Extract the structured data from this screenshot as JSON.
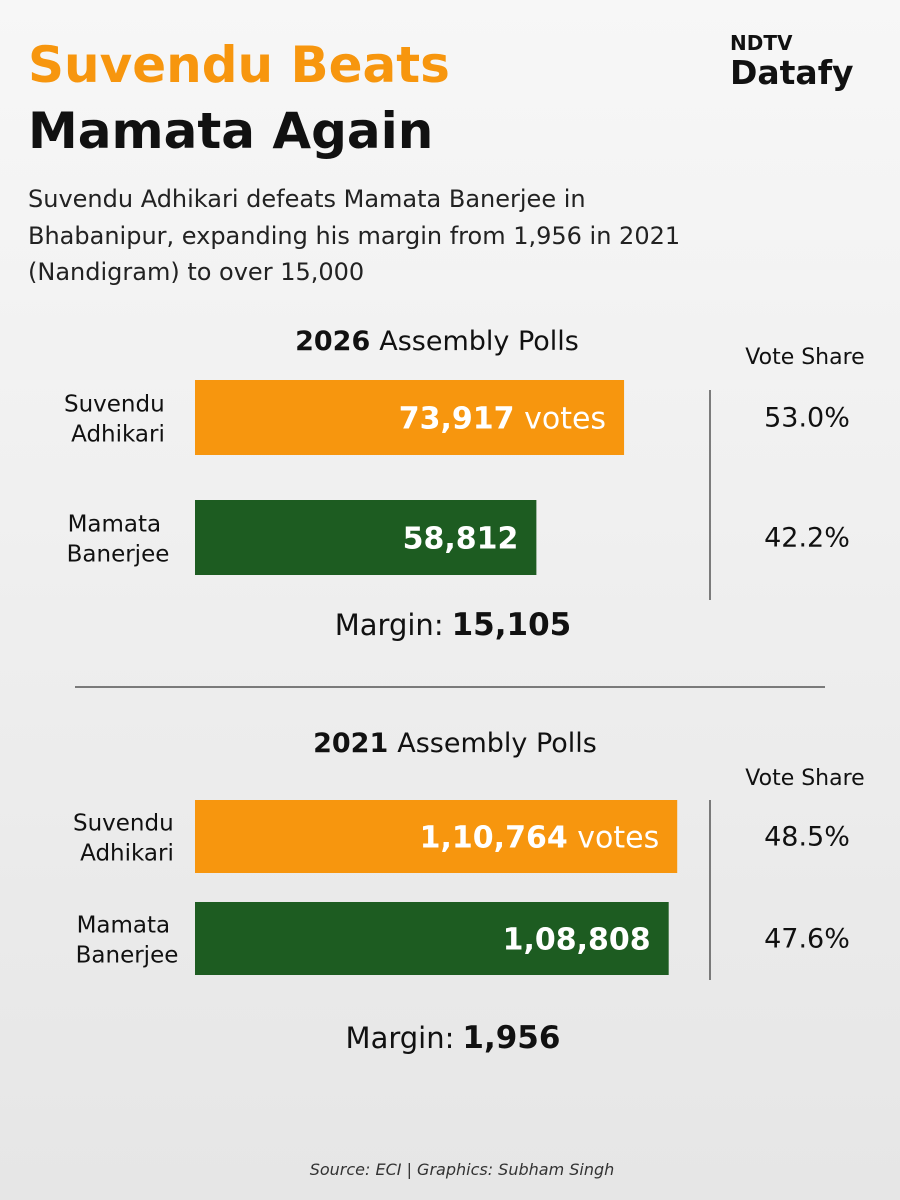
{
  "header": {
    "title_line1": "Suvendu Beats",
    "title_line2": "Mamata Again",
    "subtitle": [
      "Suvendu Adhikari defeats Mamata Banerjee in",
      "Bhabanipur, expanding his margin from 1,956 in 2021",
      "(Nandigram) to over 15,000"
    ],
    "logo": {
      "top": "NDTV",
      "bottom": "Datafy"
    }
  },
  "chart_data": [
    {
      "type": "bar",
      "orientation": "horizontal",
      "year": "2026",
      "title": "Assembly Polls",
      "categories": [
        "Suvendu Adhikari",
        "Mamata Banerjee"
      ],
      "values": [
        73917,
        58812
      ],
      "value_labels": [
        "73,917 votes",
        "58,812"
      ],
      "colors": [
        "#f7960e",
        "#1d5c21"
      ],
      "xlim": [
        0,
        87000
      ],
      "vote_share": {
        "label": "Vote Share",
        "values": [
          53.0,
          42.2
        ],
        "value_labels": [
          "53.0%",
          "42.2%"
        ]
      },
      "margin": {
        "label": "Margin:",
        "value": 15105,
        "value_label": "15,105"
      }
    },
    {
      "type": "bar",
      "orientation": "horizontal",
      "year": "2021",
      "title": "Assembly Polls",
      "categories": [
        "Suvendu Adhikari",
        "Mamata Banerjee"
      ],
      "values": [
        110764,
        108808
      ],
      "value_labels": [
        "1,10,764 votes",
        "1,08,808"
      ],
      "colors": [
        "#f7960e",
        "#1d5c21"
      ],
      "xlim": [
        0,
        116000
      ],
      "vote_share": {
        "label": "Vote Share",
        "values": [
          48.5,
          47.6
        ],
        "value_labels": [
          "48.5%",
          "47.6%"
        ]
      },
      "margin": {
        "label": "Margin:",
        "value": 1956,
        "value_label": "1,956"
      }
    }
  ],
  "source": "Source: ECI | Graphics: Subham Singh"
}
